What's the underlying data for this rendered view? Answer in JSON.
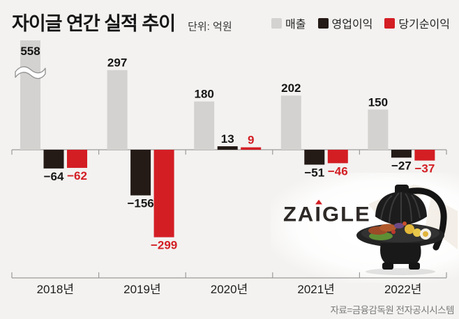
{
  "header": {
    "title": "자이글 연간 실적 추이",
    "unit_label": "단위: 억원"
  },
  "chart_data": {
    "type": "bar",
    "title": "자이글 연간 실적 추이",
    "unit": "억원",
    "categories": [
      "2018년",
      "2019년",
      "2020년",
      "2021년",
      "2022년"
    ],
    "series": [
      {
        "name": "매출",
        "color": "#d3d2d0",
        "label_color": "#161616",
        "values": [
          558,
          297,
          180,
          202,
          150
        ]
      },
      {
        "name": "영업이익",
        "color": "#241a16",
        "label_color": "#161616",
        "values": [
          -64,
          -156,
          13,
          -51,
          -27
        ]
      },
      {
        "name": "당기순이익",
        "color": "#d31e24",
        "label_color": "#d31e24",
        "values": [
          -62,
          -299,
          9,
          -46,
          -37
        ]
      }
    ],
    "axis_break": {
      "series_index": 0,
      "category_index": 0,
      "note": "558 매출 bar truncated with wavy break mark"
    },
    "baseline": 0,
    "grid": false,
    "legend_position": "top-right",
    "value_labels": true
  },
  "footer": {
    "source": "자료=금융감독원 전자공시시스템"
  },
  "brand": {
    "logo_left": "ZA",
    "logo_i": "I",
    "logo_right": "GLE",
    "accent_color": "#d31e24"
  },
  "colors": {
    "background": "#f3f2f0",
    "axis": "#9a9a9a"
  }
}
